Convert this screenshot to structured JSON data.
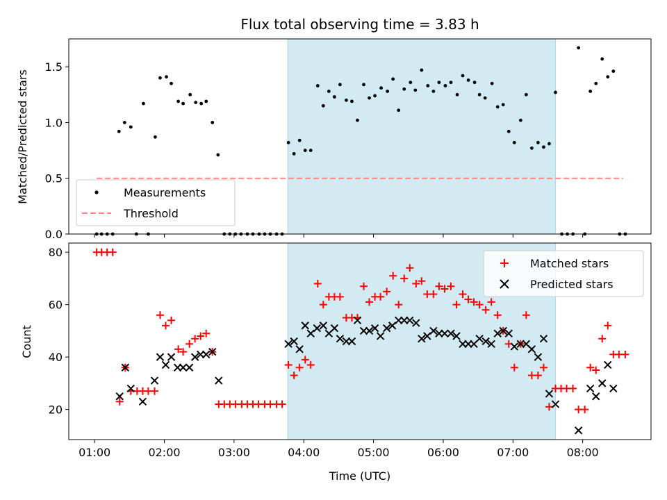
{
  "chart_data": [
    {
      "type": "scatter",
      "title": "Flux total observing time = 3.83 h",
      "xlabel": "",
      "ylabel": "Matched/Predicted stars",
      "x_ticks": [
        "01:00",
        "02:00",
        "03:00",
        "04:00",
        "05:00",
        "06:00",
        "07:00",
        "08:00"
      ],
      "y_ticks": [
        "0.0",
        "0.5",
        "1.0",
        "1.5"
      ],
      "ylim": [
        0,
        1.75
      ],
      "xlim_hours": [
        0.63,
        8.98
      ],
      "shaded_span_hours": [
        3.77,
        7.61
      ],
      "shade_color": "#add8e6",
      "legend": {
        "location": "lower-left",
        "entries": [
          "Measurements",
          "Threshold"
        ]
      },
      "threshold": {
        "name": "Threshold",
        "value": 0.5,
        "x_range_hours": [
          1.03,
          8.58
        ],
        "color": "#ff7f7f",
        "style": "dashed"
      },
      "series": [
        {
          "name": "Measurements",
          "color": "#000000",
          "marker": "dot",
          "points": [
            [
              1.03,
              0
            ],
            [
              1.1,
              0
            ],
            [
              1.18,
              0
            ],
            [
              1.26,
              0
            ],
            [
              1.35,
              0.92
            ],
            [
              1.43,
              1.0
            ],
            [
              1.52,
              0.96
            ],
            [
              1.6,
              0
            ],
            [
              1.7,
              1.17
            ],
            [
              1.77,
              0
            ],
            [
              1.87,
              0.87
            ],
            [
              1.94,
              1.4
            ],
            [
              2.03,
              1.41
            ],
            [
              2.1,
              1.35
            ],
            [
              2.2,
              1.19
            ],
            [
              2.27,
              1.17
            ],
            [
              2.37,
              1.25
            ],
            [
              2.45,
              1.18
            ],
            [
              2.53,
              1.17
            ],
            [
              2.6,
              1.19
            ],
            [
              2.69,
              1.0
            ],
            [
              2.77,
              0.71
            ],
            [
              2.86,
              0
            ],
            [
              2.94,
              0
            ],
            [
              3.02,
              0
            ],
            [
              3.1,
              0
            ],
            [
              3.19,
              0
            ],
            [
              3.27,
              0
            ],
            [
              3.36,
              0
            ],
            [
              3.44,
              0
            ],
            [
              3.52,
              0
            ],
            [
              3.61,
              0
            ],
            [
              3.69,
              0
            ],
            [
              3.78,
              0.82
            ],
            [
              3.86,
              0.72
            ],
            [
              3.94,
              0.84
            ],
            [
              4.02,
              0.75
            ],
            [
              4.1,
              0.75
            ],
            [
              4.2,
              1.33
            ],
            [
              4.28,
              1.15
            ],
            [
              4.36,
              1.28
            ],
            [
              4.44,
              1.23
            ],
            [
              4.52,
              1.34
            ],
            [
              4.61,
              1.2
            ],
            [
              4.69,
              1.19
            ],
            [
              4.77,
              1.02
            ],
            [
              4.86,
              1.34
            ],
            [
              4.94,
              1.22
            ],
            [
              5.02,
              1.24
            ],
            [
              5.11,
              1.31
            ],
            [
              5.2,
              1.28
            ],
            [
              5.28,
              1.39
            ],
            [
              5.36,
              1.11
            ],
            [
              5.44,
              1.3
            ],
            [
              5.53,
              1.36
            ],
            [
              5.6,
              1.29
            ],
            [
              5.69,
              1.47
            ],
            [
              5.78,
              1.33
            ],
            [
              5.86,
              1.28
            ],
            [
              5.94,
              1.36
            ],
            [
              6.03,
              1.33
            ],
            [
              6.11,
              1.36
            ],
            [
              6.2,
              1.25
            ],
            [
              6.28,
              1.42
            ],
            [
              6.36,
              1.38
            ],
            [
              6.45,
              1.36
            ],
            [
              6.52,
              1.25
            ],
            [
              6.6,
              1.22
            ],
            [
              6.7,
              1.35
            ],
            [
              6.78,
              1.14
            ],
            [
              6.86,
              1.16
            ],
            [
              6.94,
              0.92
            ],
            [
              7.02,
              0.82
            ],
            [
              7.11,
              1.02
            ],
            [
              7.19,
              1.25
            ],
            [
              7.27,
              0.77
            ],
            [
              7.36,
              0.82
            ],
            [
              7.44,
              0.78
            ],
            [
              7.52,
              0.81
            ],
            [
              7.61,
              1.27
            ],
            [
              7.7,
              0
            ],
            [
              7.78,
              0
            ],
            [
              7.86,
              0
            ],
            [
              7.94,
              1.67
            ],
            [
              8.03,
              0
            ],
            [
              8.11,
              1.28
            ],
            [
              8.19,
              1.35
            ],
            [
              8.28,
              1.57
            ],
            [
              8.36,
              1.41
            ],
            [
              8.44,
              1.46
            ],
            [
              8.53,
              0
            ],
            [
              8.61,
              0
            ]
          ]
        }
      ]
    },
    {
      "type": "scatter",
      "title": "",
      "xlabel": "Time (UTC)",
      "ylabel": "Count",
      "x_ticks": [
        "01:00",
        "02:00",
        "03:00",
        "04:00",
        "05:00",
        "06:00",
        "07:00",
        "08:00"
      ],
      "y_ticks": [
        "20",
        "40",
        "60",
        "80"
      ],
      "ylim": [
        8.5,
        83.5
      ],
      "xlim_hours": [
        0.63,
        8.98
      ],
      "shaded_span_hours": [
        3.77,
        7.61
      ],
      "shade_color": "#add8e6",
      "legend": {
        "location": "upper-right",
        "entries": [
          "Matched stars",
          "Predicted stars"
        ]
      },
      "series": [
        {
          "name": "Matched stars",
          "color": "#ff0000",
          "marker": "plus",
          "points": [
            [
              1.03,
              80
            ],
            [
              1.1,
              80
            ],
            [
              1.18,
              80
            ],
            [
              1.26,
              80
            ],
            [
              1.36,
              23
            ],
            [
              1.44,
              36
            ],
            [
              1.52,
              27
            ],
            [
              1.61,
              27
            ],
            [
              1.69,
              27
            ],
            [
              1.77,
              27
            ],
            [
              1.86,
              27
            ],
            [
              1.94,
              56
            ],
            [
              2.02,
              52
            ],
            [
              2.1,
              54
            ],
            [
              2.2,
              43
            ],
            [
              2.27,
              42
            ],
            [
              2.36,
              45
            ],
            [
              2.44,
              47
            ],
            [
              2.52,
              48
            ],
            [
              2.6,
              49
            ],
            [
              2.69,
              42
            ],
            [
              2.78,
              22
            ],
            [
              2.86,
              22
            ],
            [
              2.94,
              22
            ],
            [
              3.02,
              22
            ],
            [
              3.11,
              22
            ],
            [
              3.19,
              22
            ],
            [
              3.27,
              22
            ],
            [
              3.35,
              22
            ],
            [
              3.44,
              22
            ],
            [
              3.52,
              22
            ],
            [
              3.61,
              22
            ],
            [
              3.69,
              22
            ],
            [
              3.78,
              37
            ],
            [
              3.86,
              33
            ],
            [
              3.94,
              36
            ],
            [
              4.02,
              39
            ],
            [
              4.1,
              37
            ],
            [
              4.2,
              68
            ],
            [
              4.28,
              60
            ],
            [
              4.36,
              63
            ],
            [
              4.44,
              63
            ],
            [
              4.52,
              63
            ],
            [
              4.61,
              55
            ],
            [
              4.69,
              55
            ],
            [
              4.77,
              55
            ],
            [
              4.86,
              67
            ],
            [
              4.94,
              61
            ],
            [
              5.02,
              63
            ],
            [
              5.1,
              63
            ],
            [
              5.19,
              65
            ],
            [
              5.28,
              71
            ],
            [
              5.36,
              60
            ],
            [
              5.44,
              70
            ],
            [
              5.52,
              74
            ],
            [
              5.61,
              68
            ],
            [
              5.69,
              69
            ],
            [
              5.77,
              64
            ],
            [
              5.86,
              64
            ],
            [
              5.94,
              67
            ],
            [
              6.02,
              66
            ],
            [
              6.11,
              67
            ],
            [
              6.19,
              60
            ],
            [
              6.28,
              64
            ],
            [
              6.36,
              62
            ],
            [
              6.44,
              61
            ],
            [
              6.52,
              60
            ],
            [
              6.61,
              58
            ],
            [
              6.69,
              61
            ],
            [
              6.78,
              56
            ],
            [
              6.86,
              50
            ],
            [
              6.94,
              45
            ],
            [
              7.02,
              36
            ],
            [
              7.11,
              45
            ],
            [
              7.19,
              56
            ],
            [
              7.27,
              33
            ],
            [
              7.36,
              33
            ],
            [
              7.44,
              36
            ],
            [
              7.52,
              21
            ],
            [
              7.61,
              28
            ],
            [
              7.69,
              28
            ],
            [
              7.77,
              28
            ],
            [
              7.86,
              28
            ],
            [
              7.94,
              20
            ],
            [
              8.03,
              20
            ],
            [
              8.11,
              36
            ],
            [
              8.19,
              35
            ],
            [
              8.28,
              47
            ],
            [
              8.36,
              52
            ],
            [
              8.44,
              41
            ],
            [
              8.52,
              41
            ],
            [
              8.61,
              41
            ]
          ]
        },
        {
          "name": "Predicted stars",
          "color": "#000000",
          "marker": "x",
          "points": [
            [
              1.36,
              25
            ],
            [
              1.44,
              36
            ],
            [
              1.52,
              28
            ],
            [
              1.69,
              23
            ],
            [
              1.86,
              31
            ],
            [
              1.94,
              40
            ],
            [
              2.02,
              37
            ],
            [
              2.1,
              40
            ],
            [
              2.19,
              36
            ],
            [
              2.27,
              36
            ],
            [
              2.36,
              36
            ],
            [
              2.44,
              40
            ],
            [
              2.52,
              41
            ],
            [
              2.6,
              41
            ],
            [
              2.69,
              42
            ],
            [
              2.78,
              31
            ],
            [
              3.78,
              45
            ],
            [
              3.86,
              46
            ],
            [
              3.94,
              43
            ],
            [
              4.02,
              52
            ],
            [
              4.1,
              49
            ],
            [
              4.19,
              51
            ],
            [
              4.28,
              52
            ],
            [
              4.36,
              49
            ],
            [
              4.44,
              51
            ],
            [
              4.52,
              47
            ],
            [
              4.61,
              46
            ],
            [
              4.69,
              46
            ],
            [
              4.77,
              54
            ],
            [
              4.86,
              50
            ],
            [
              4.94,
              50
            ],
            [
              5.02,
              51
            ],
            [
              5.1,
              48
            ],
            [
              5.19,
              51
            ],
            [
              5.27,
              52
            ],
            [
              5.36,
              54
            ],
            [
              5.44,
              54
            ],
            [
              5.52,
              54
            ],
            [
              5.61,
              53
            ],
            [
              5.69,
              47
            ],
            [
              5.77,
              48
            ],
            [
              5.86,
              50
            ],
            [
              5.94,
              49
            ],
            [
              6.02,
              49
            ],
            [
              6.11,
              49
            ],
            [
              6.19,
              48
            ],
            [
              6.28,
              45
            ],
            [
              6.36,
              45
            ],
            [
              6.44,
              45
            ],
            [
              6.52,
              47
            ],
            [
              6.61,
              46
            ],
            [
              6.69,
              45
            ],
            [
              6.78,
              49
            ],
            [
              6.86,
              50
            ],
            [
              6.94,
              49
            ],
            [
              7.02,
              44
            ],
            [
              7.11,
              45
            ],
            [
              7.19,
              45
            ],
            [
              7.27,
              43
            ],
            [
              7.36,
              40
            ],
            [
              7.44,
              47
            ],
            [
              7.52,
              26
            ],
            [
              7.61,
              22
            ],
            [
              7.94,
              12
            ],
            [
              8.11,
              28
            ],
            [
              8.19,
              25
            ],
            [
              8.28,
              30
            ],
            [
              8.36,
              37
            ],
            [
              8.44,
              28
            ]
          ]
        }
      ]
    }
  ]
}
